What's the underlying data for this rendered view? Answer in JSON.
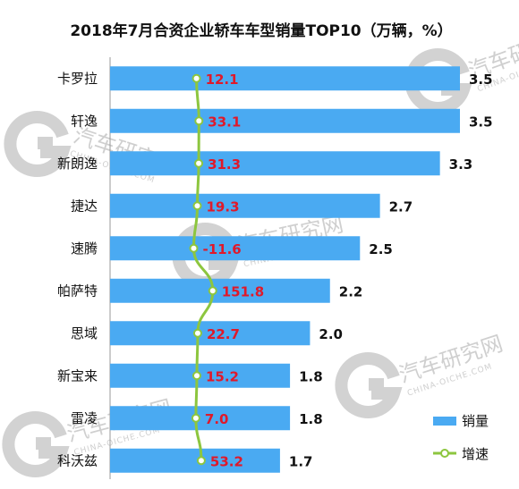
{
  "chart_data": {
    "type": "bar",
    "orientation": "horizontal",
    "title": "2018年7月合资企业轿车车型销量TOP10（万辆，%）",
    "categories": [
      "卡罗拉",
      "轩逸",
      "新朗逸",
      "捷达",
      "速腾",
      "帕萨特",
      "思域",
      "新宝来",
      "雷凌",
      "科沃兹"
    ],
    "series": [
      {
        "name": "销量",
        "values": [
          3.5,
          3.5,
          3.3,
          2.7,
          2.5,
          2.2,
          2.0,
          1.8,
          1.8,
          1.7
        ],
        "color": "#4aaaf2"
      },
      {
        "name": "增速",
        "values": [
          12.1,
          33.1,
          31.3,
          19.3,
          -11.6,
          151.8,
          22.7,
          15.2,
          7.0,
          53.2
        ],
        "color": "#8dc63f",
        "labels": [
          "12.1",
          "33.1",
          "31.3",
          "19.3",
          "-11.6",
          "151.8",
          "22.7",
          "15.2",
          "7.0",
          "53.2"
        ]
      }
    ],
    "legend_position": "bottom-right",
    "grid": false
  },
  "watermark": {
    "brand": "汽车研究网",
    "url": "CHINA-OICHE.COM"
  }
}
